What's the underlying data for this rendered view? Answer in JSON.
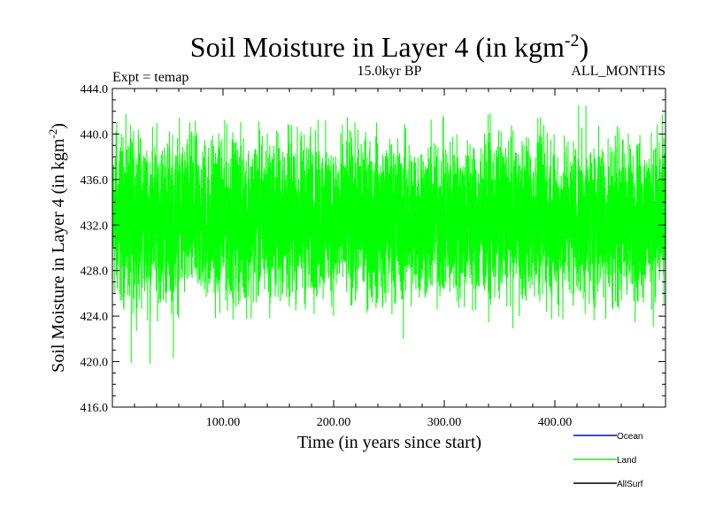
{
  "chart_data": {
    "type": "line",
    "title": "Soil Moisture in Layer 4 (in kgm",
    "title_sup": "-2",
    "title_close": ")",
    "left_subtitle": "Expt = temap",
    "center_subtitle": "15.0kyr BP",
    "right_subtitle": "ALL_MONTHS",
    "xlabel": "Time (in years since start)",
    "ylabel": "Soil Moisture in Layer 4 (in kgm",
    "ylabel_sup": "-2",
    "ylabel_close": ")",
    "xlim": [
      0,
      500
    ],
    "ylim": [
      416,
      444
    ],
    "x_ticks": [
      100,
      200,
      300,
      400
    ],
    "x_tick_labels": [
      "100.00",
      "200.00",
      "300.00",
      "400.00"
    ],
    "y_ticks": [
      416,
      420,
      424,
      428,
      432,
      436,
      440,
      444
    ],
    "y_tick_labels": [
      "416.0",
      "420.0",
      "424.0",
      "428.0",
      "432.0",
      "436.0",
      "440.0",
      "444.0"
    ],
    "legend": [
      {
        "name": "Ocean",
        "color": "#0000ff"
      },
      {
        "name": "Land",
        "color": "#00ff00"
      },
      {
        "name": "AllSurf",
        "color": "#000000"
      }
    ],
    "series": [
      {
        "name": "Land",
        "color": "#00ff00",
        "x_start": 0,
        "x_step": 0.0833,
        "n_points": 6000,
        "mean": 432.5,
        "typical_min": 426.0,
        "typical_max": 438.0,
        "extremes": [
          {
            "x": 4,
            "y": 441.0
          },
          {
            "x": 17,
            "y": 419.9
          },
          {
            "x": 34,
            "y": 419.8
          },
          {
            "x": 55,
            "y": 420.3
          },
          {
            "x": 70,
            "y": 441.0
          },
          {
            "x": 263,
            "y": 422.0
          },
          {
            "x": 390,
            "y": 440.8
          }
        ]
      }
    ]
  }
}
